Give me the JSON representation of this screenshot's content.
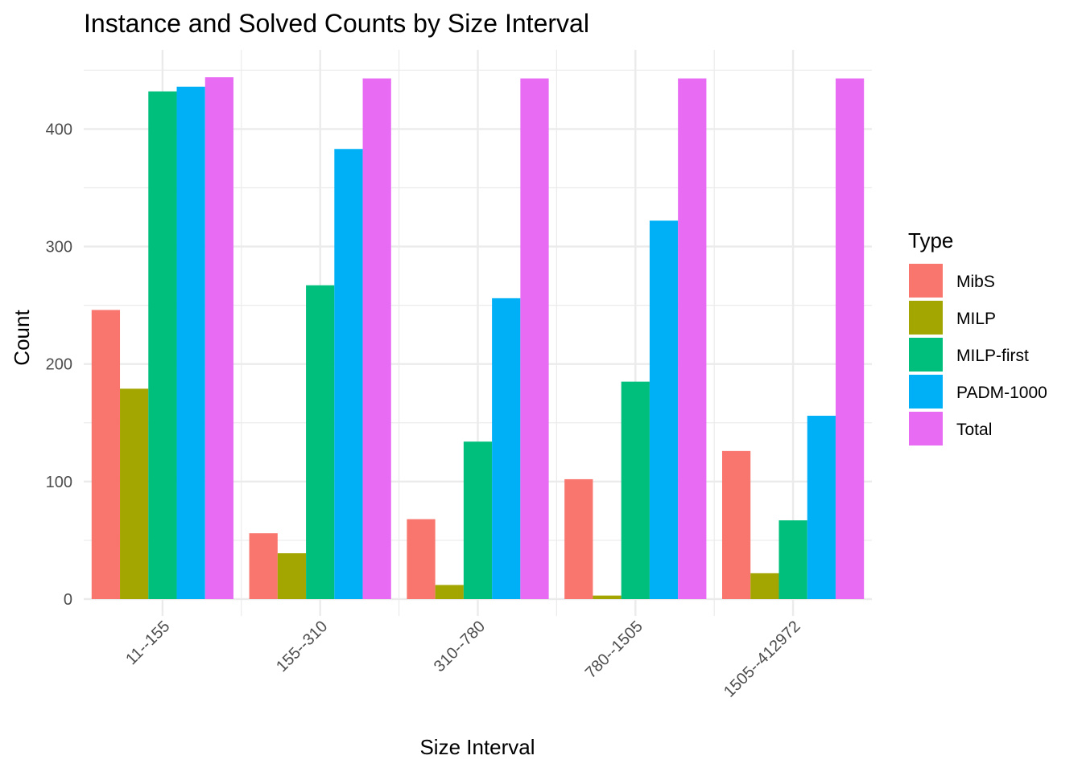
{
  "chart_data": {
    "type": "bar",
    "title": "Instance and Solved Counts by Size Interval",
    "xlabel": "Size Interval",
    "ylabel": "Count",
    "categories": [
      "11--155",
      "155--310",
      "310--780",
      "780--1505",
      "1505--412972"
    ],
    "ylim": [
      0,
      455
    ],
    "yticks": [
      0,
      100,
      200,
      300,
      400
    ],
    "grid": true,
    "legend_title": "Type",
    "legend_position": "right",
    "series": [
      {
        "name": "MibS",
        "color": "#F8766D",
        "values": [
          246,
          56,
          68,
          102,
          126
        ]
      },
      {
        "name": "MILP",
        "color": "#A3A500",
        "values": [
          179,
          39,
          12,
          3,
          22
        ]
      },
      {
        "name": "MILP-first",
        "color": "#00BF7D",
        "values": [
          432,
          267,
          134,
          185,
          67
        ]
      },
      {
        "name": "PADM-1000",
        "color": "#00B0F6",
        "values": [
          436,
          383,
          256,
          322,
          156
        ]
      },
      {
        "name": "Total",
        "color": "#E76BF3",
        "values": [
          444,
          443,
          443,
          443,
          443
        ]
      }
    ]
  }
}
